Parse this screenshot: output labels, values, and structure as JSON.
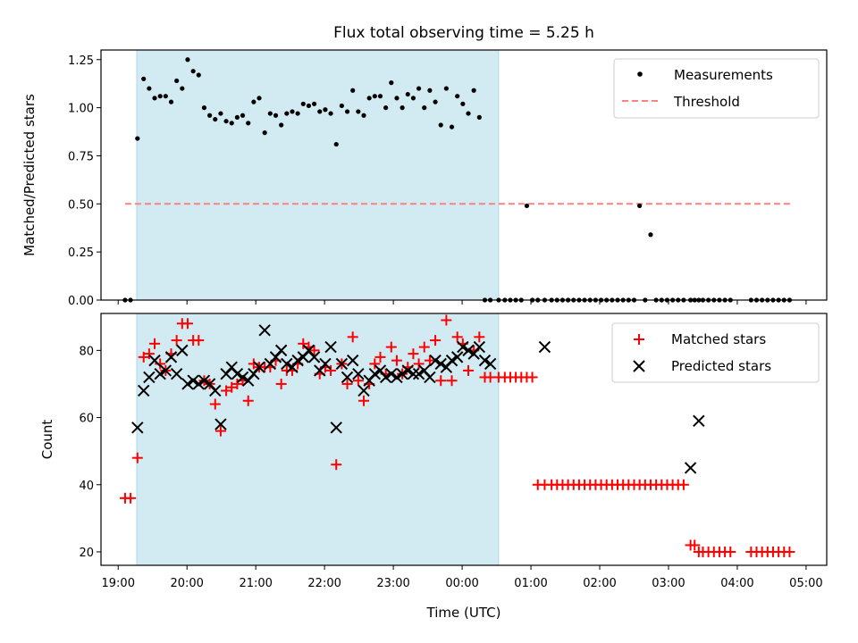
{
  "title": "Flux total observing time = 5.25 h",
  "colors": {
    "shade": "#add8e6",
    "threshold": "#ff8080",
    "matched": "#ff0000",
    "predicted": "#000000",
    "measurements": "#000000"
  },
  "chart_data": [
    {
      "type": "scatter",
      "ylabel": "Matched/Predicted stars",
      "xlabel": "",
      "xlim": [
        -0.25,
        10.3
      ],
      "ylim": [
        0,
        1.3
      ],
      "yticks": [
        "0.00",
        "0.25",
        "0.50",
        "0.75",
        "1.00",
        "1.25"
      ],
      "shaded_interval": [
        0.27,
        5.53
      ],
      "threshold": {
        "value": 0.5,
        "x_range": [
          0.1,
          9.8
        ],
        "style": "dashed"
      },
      "legend": {
        "position": "top-right",
        "entries": [
          "Measurements",
          "Threshold"
        ]
      },
      "series": [
        {
          "name": "Measurements",
          "marker": "dot",
          "x": [
            0.1,
            0.18,
            0.28,
            0.37,
            0.45,
            0.53,
            0.61,
            0.69,
            0.77,
            0.85,
            0.93,
            1.01,
            1.09,
            1.17,
            1.25,
            1.33,
            1.41,
            1.49,
            1.57,
            1.65,
            1.73,
            1.81,
            1.89,
            1.97,
            2.05,
            2.13,
            2.21,
            2.29,
            2.37,
            2.45,
            2.53,
            2.61,
            2.69,
            2.77,
            2.85,
            2.93,
            3.01,
            3.09,
            3.17,
            3.25,
            3.33,
            3.41,
            3.49,
            3.57,
            3.65,
            3.73,
            3.81,
            3.89,
            3.97,
            4.05,
            4.13,
            4.21,
            4.29,
            4.37,
            4.45,
            4.53,
            4.61,
            4.69,
            4.77,
            4.85,
            4.93,
            5.01,
            5.09,
            5.17,
            5.25,
            5.33,
            5.41,
            5.53,
            5.62,
            5.7,
            5.78,
            5.86,
            5.94,
            6.02,
            6.1,
            6.2,
            6.3,
            6.38,
            6.46,
            6.54,
            6.62,
            6.7,
            6.78,
            6.86,
            6.94,
            7.02,
            7.1,
            7.18,
            7.26,
            7.34,
            7.42,
            7.5,
            7.58,
            7.66,
            7.74,
            7.82,
            7.9,
            7.98,
            8.06,
            8.14,
            8.22,
            8.32,
            8.38,
            8.44,
            8.5,
            8.58,
            8.66,
            8.74,
            8.82,
            8.9,
            9.2,
            9.28,
            9.36,
            9.44,
            9.52,
            9.6,
            9.68,
            9.76
          ],
          "y": [
            0.0,
            0.0,
            0.84,
            1.15,
            1.1,
            1.05,
            1.06,
            1.06,
            1.03,
            1.14,
            1.1,
            1.25,
            1.19,
            1.17,
            1.0,
            0.96,
            0.94,
            0.97,
            0.93,
            0.92,
            0.95,
            0.96,
            0.92,
            1.03,
            1.05,
            0.87,
            0.97,
            0.96,
            0.91,
            0.97,
            0.98,
            0.97,
            1.02,
            1.01,
            1.02,
            0.98,
            0.99,
            0.97,
            0.81,
            1.01,
            0.98,
            1.09,
            0.98,
            0.96,
            1.05,
            1.06,
            1.06,
            1.0,
            1.13,
            1.05,
            1.0,
            1.07,
            1.05,
            1.1,
            1.0,
            1.09,
            1.03,
            0.91,
            1.1,
            0.9,
            1.06,
            1.02,
            0.97,
            1.09,
            0.95,
            0.0,
            0.0,
            0.0,
            0.0,
            0.0,
            0.0,
            0.0,
            0.49,
            0.0,
            0.0,
            0.0,
            0.0,
            0.0,
            0.0,
            0.0,
            0.0,
            0.0,
            0.0,
            0.0,
            0.0,
            0.0,
            0.0,
            0.0,
            0.0,
            0.0,
            0.0,
            0.0,
            0.49,
            0.0,
            0.34,
            0.0,
            0.0,
            0.0,
            0.0,
            0.0,
            0.0,
            0.0,
            0.0,
            0.0,
            0.0,
            0.0,
            0.0,
            0.0,
            0.0,
            0.0,
            0.0,
            0.0,
            0.0,
            0.0,
            0.0,
            0.0,
            0.0,
            0.0
          ]
        }
      ]
    },
    {
      "type": "scatter",
      "ylabel": "Count",
      "xlabel": "Time (UTC)",
      "xlim": [
        -0.25,
        10.3
      ],
      "ylim": [
        16,
        91
      ],
      "yticks": [
        "20",
        "40",
        "60",
        "80"
      ],
      "xticks": [
        "19:00",
        "20:00",
        "21:00",
        "22:00",
        "23:00",
        "00:00",
        "01:00",
        "02:00",
        "03:00",
        "04:00",
        "05:00"
      ],
      "shaded_interval": [
        0.27,
        5.53
      ],
      "legend": {
        "position": "top-right",
        "entries": [
          "Matched stars",
          "Predicted stars"
        ]
      },
      "series": [
        {
          "name": "Matched stars",
          "marker": "plus",
          "x": [
            0.1,
            0.18,
            0.28,
            0.37,
            0.45,
            0.53,
            0.61,
            0.69,
            0.77,
            0.85,
            0.93,
            1.01,
            1.09,
            1.17,
            1.25,
            1.33,
            1.41,
            1.49,
            1.57,
            1.65,
            1.73,
            1.81,
            1.89,
            1.97,
            2.05,
            2.13,
            2.21,
            2.29,
            2.37,
            2.45,
            2.53,
            2.61,
            2.69,
            2.77,
            2.85,
            2.93,
            3.01,
            3.09,
            3.17,
            3.25,
            3.33,
            3.41,
            3.49,
            3.57,
            3.65,
            3.73,
            3.81,
            3.89,
            3.97,
            4.05,
            4.13,
            4.21,
            4.29,
            4.37,
            4.45,
            4.53,
            4.61,
            4.69,
            4.77,
            4.85,
            4.93,
            5.01,
            5.09,
            5.17,
            5.25,
            5.33,
            5.41,
            5.53,
            5.62,
            5.7,
            5.78,
            5.86,
            5.94,
            6.02,
            6.1,
            6.2,
            6.3,
            6.38,
            6.46,
            6.54,
            6.62,
            6.7,
            6.78,
            6.86,
            6.94,
            7.02,
            7.1,
            7.18,
            7.26,
            7.34,
            7.42,
            7.5,
            7.58,
            7.66,
            7.74,
            7.82,
            7.9,
            7.98,
            8.06,
            8.14,
            8.22,
            8.32,
            8.38,
            8.44,
            8.5,
            8.58,
            8.66,
            8.74,
            8.82,
            8.9,
            9.2,
            9.28,
            9.36,
            9.44,
            9.52,
            9.6,
            9.68,
            9.76
          ],
          "y": [
            36,
            36,
            48,
            78,
            79,
            82,
            76,
            74,
            79,
            83,
            88,
            88,
            83,
            83,
            71,
            70,
            64,
            56,
            68,
            69,
            70,
            71,
            65,
            76,
            75,
            75,
            75,
            77,
            70,
            74,
            74,
            76,
            82,
            81,
            80,
            73,
            75,
            74,
            46,
            76,
            70,
            84,
            71,
            65,
            70,
            76,
            78,
            73,
            81,
            77,
            73,
            75,
            79,
            76,
            81,
            77,
            83,
            71,
            89,
            71,
            84,
            82,
            74,
            80,
            84,
            72,
            72,
            72,
            72,
            72,
            72,
            72,
            72,
            72,
            40,
            40,
            40,
            40,
            40,
            40,
            40,
            40,
            40,
            40,
            40,
            40,
            40,
            40,
            40,
            40,
            40,
            40,
            40,
            40,
            40,
            40,
            40,
            40,
            40,
            40,
            40,
            22,
            22,
            20,
            20,
            20,
            20,
            20,
            20,
            20,
            20,
            20,
            20,
            20,
            20,
            20,
            20,
            20
          ]
        },
        {
          "name": "Predicted stars",
          "marker": "x",
          "x": [
            0.28,
            0.37,
            0.45,
            0.53,
            0.61,
            0.69,
            0.77,
            0.85,
            0.93,
            1.01,
            1.09,
            1.17,
            1.25,
            1.33,
            1.41,
            1.49,
            1.57,
            1.65,
            1.73,
            1.81,
            1.89,
            1.97,
            2.05,
            2.13,
            2.21,
            2.29,
            2.37,
            2.45,
            2.53,
            2.61,
            2.69,
            2.77,
            2.85,
            2.93,
            3.01,
            3.09,
            3.17,
            3.25,
            3.33,
            3.41,
            3.49,
            3.57,
            3.65,
            3.73,
            3.81,
            3.89,
            3.97,
            4.05,
            4.13,
            4.21,
            4.29,
            4.37,
            4.45,
            4.53,
            4.61,
            4.69,
            4.77,
            4.85,
            4.93,
            5.01,
            5.09,
            5.17,
            5.25,
            5.33,
            5.41,
            6.2,
            8.32,
            8.44
          ],
          "y": [
            57,
            68,
            72,
            77,
            73,
            74,
            78,
            73,
            80,
            70,
            71,
            70,
            71,
            70,
            68,
            58,
            73,
            75,
            73,
            72,
            71,
            73,
            75,
            86,
            76,
            78,
            80,
            76,
            75,
            77,
            78,
            80,
            78,
            74,
            76,
            81,
            57,
            76,
            72,
            77,
            73,
            68,
            71,
            73,
            74,
            72,
            73,
            72,
            73,
            74,
            73,
            73,
            74,
            72,
            77,
            76,
            75,
            77,
            78,
            81,
            80,
            79,
            81,
            77,
            76,
            81,
            45,
            59
          ]
        }
      ]
    }
  ]
}
